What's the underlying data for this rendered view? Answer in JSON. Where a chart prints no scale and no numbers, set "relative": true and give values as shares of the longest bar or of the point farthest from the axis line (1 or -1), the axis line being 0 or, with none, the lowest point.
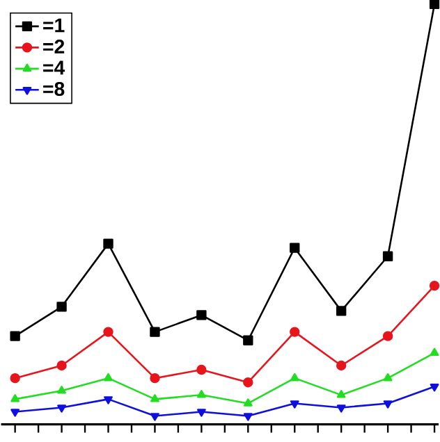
{
  "chart_data": {
    "type": "line",
    "relative": true,
    "legend": "top left",
    "categories": [
      null,
      null,
      null,
      null,
      null,
      null,
      null,
      null,
      null,
      null
    ],
    "series": [
      {
        "name": "=1",
        "color": "#000000",
        "marker": "square",
        "values": [
          0.21,
          0.28,
          0.43,
          0.22,
          0.26,
          0.2,
          0.42,
          0.27,
          0.4,
          1
        ]
      },
      {
        "name": "=2",
        "color": "#e8141c",
        "marker": "circle",
        "values": [
          0.11,
          0.14,
          0.22,
          0.11,
          0.13,
          0.1,
          0.22,
          0.14,
          0.21,
          0.33
        ]
      },
      {
        "name": "=4",
        "color": "#22dd22",
        "marker": "triangle",
        "values": [
          0.06,
          0.08,
          0.11,
          0.06,
          0.07,
          0.05,
          0.11,
          0.07,
          0.11,
          0.17
        ]
      },
      {
        "name": "=8",
        "color": "#1010dd",
        "marker": "triangle down",
        "values": [
          0.03,
          0.04,
          0.06,
          0.02,
          0.03,
          0.02,
          0.05,
          0.04,
          0.05,
          0.09
        ]
      }
    ]
  }
}
